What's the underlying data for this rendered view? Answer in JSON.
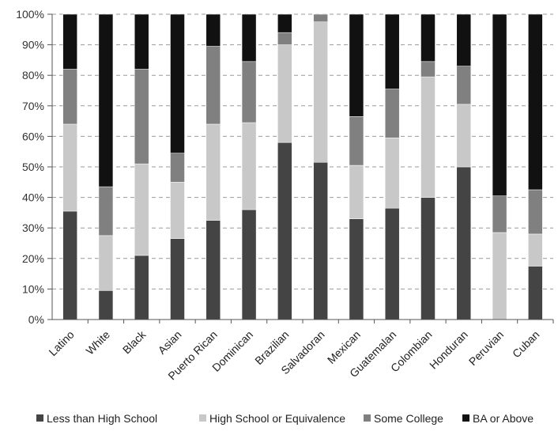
{
  "chart_data": {
    "type": "bar",
    "stacked": true,
    "categories": [
      "Latino",
      "White",
      "Black",
      "Asian",
      "Puerto Rican",
      "Dominican",
      "Brazilian",
      "Salvadoran",
      "Mexican",
      "Guatemalan",
      "Colombian",
      "Honduran",
      "Peruvian",
      "Cuban"
    ],
    "series": [
      {
        "name": "Less than High School",
        "color": "#444444",
        "values": [
          35.5,
          9.5,
          21,
          26.5,
          32.5,
          36,
          58,
          51.5,
          33,
          36.5,
          40,
          50,
          0,
          17.5
        ]
      },
      {
        "name": "High School or Equivalence",
        "color": "#c8c8c8",
        "values": [
          28.5,
          18,
          30,
          18.5,
          31.5,
          28.5,
          32,
          46,
          17.5,
          23,
          39.5,
          20.5,
          28.5,
          10.5
        ]
      },
      {
        "name": "Some College",
        "color": "#808080",
        "values": [
          18,
          16,
          31,
          9.5,
          25.5,
          20,
          4,
          2.5,
          16,
          16,
          5,
          12.5,
          12,
          14.5
        ]
      },
      {
        "name": "BA or Above",
        "color": "#111111",
        "values": [
          18,
          56.5,
          18,
          45.5,
          10.5,
          15.5,
          6,
          0,
          33.5,
          24.5,
          15.5,
          17,
          59.5,
          57.5
        ]
      }
    ],
    "y_ticks": [
      "0%",
      "10%",
      "20%",
      "30%",
      "40%",
      "50%",
      "60%",
      "70%",
      "80%",
      "90%",
      "100%"
    ],
    "ylim": [
      0,
      100
    ],
    "grid": true,
    "legend_position": "bottom",
    "title": "",
    "xlabel": "",
    "ylabel": ""
  }
}
